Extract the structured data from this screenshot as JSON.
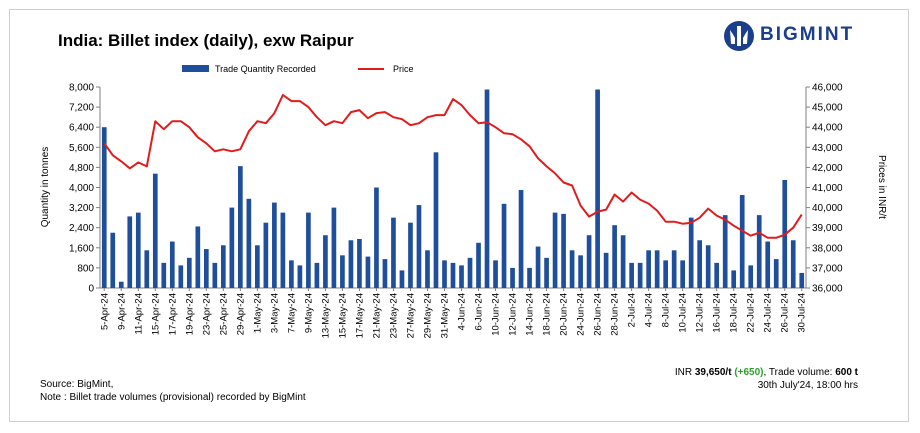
{
  "title": "India: Billet index (daily), exw Raipur",
  "logo": {
    "text": "BIGMINT"
  },
  "colors": {
    "bar": "#1f4e9c",
    "line": "#e01c1c",
    "logo": "#1b3f8b",
    "change": "#2e9e2e"
  },
  "footer": {
    "source": "Source: BigMint,",
    "note": "Note : Billet trade volumes (provisional) recorded by BigMint",
    "price_prefix": "INR ",
    "price_value": "39,650/t",
    "price_change": "(+650)",
    "volume_prefix": ", Trade volume: ",
    "volume_value": "600 t",
    "timestamp": "30th July'24, 18:00 hrs"
  },
  "chart_data": {
    "type": "bar+line",
    "y_left": {
      "label": "Quantity in tonnes",
      "min": 0,
      "max": 8000,
      "ticks": [
        "0",
        "800",
        "1,600",
        "2,400",
        "3,200",
        "4,000",
        "4,800",
        "5,600",
        "6,400",
        "7,200",
        "8,000"
      ]
    },
    "y_right": {
      "label": "Prices in INR/t",
      "min": 36000,
      "max": 46000,
      "ticks": [
        "36,000",
        "37,000",
        "38,000",
        "39,000",
        "40,000",
        "41,000",
        "42,000",
        "43,000",
        "44,000",
        "45,000",
        "46,000"
      ]
    },
    "x_tick_labels": [
      "5-Apr-24",
      "9-Apr-24",
      "11-Apr-24",
      "15-Apr-24",
      "17-Apr-24",
      "19-Apr-24",
      "23-Apr-24",
      "25-Apr-24",
      "29-Apr-24",
      "1-May-24",
      "3-May-24",
      "7-May-24",
      "9-May-24",
      "13-May-24",
      "15-May-24",
      "17-May-24",
      "21-May-24",
      "23-May-24",
      "27-May-24",
      "29-May-24",
      "31-May-24",
      "4-Jun-24",
      "6-Jun-24",
      "10-Jun-24",
      "12-Jun-24",
      "14-Jun-24",
      "18-Jun-24",
      "20-Jun-24",
      "24-Jun-24",
      "26-Jun-24",
      "28-Jun-24",
      "2-Jul-24",
      "4-Jul-24",
      "8-Jul-24",
      "10-Jul-24",
      "12-Jul-24",
      "16-Jul-24",
      "18-Jul-24",
      "22-Jul-24",
      "24-Jul-24",
      "26-Jul-24",
      "30-Jul-24"
    ],
    "series": [
      {
        "name": "Trade Quantity Recorded",
        "type": "bar",
        "values": [
          6400,
          2200,
          250,
          2850,
          3000,
          1500,
          4550,
          1000,
          1850,
          900,
          1200,
          2450,
          1550,
          1000,
          1700,
          3200,
          4850,
          3550,
          1700,
          2600,
          3400,
          3000,
          1100,
          900,
          3000,
          1000,
          2100,
          3200,
          1300,
          1900,
          1950,
          1250,
          4000,
          1150,
          2800,
          700,
          2600,
          3300,
          1500,
          5400,
          1100,
          1000,
          900,
          1200,
          1800,
          7900,
          1100,
          3350,
          800,
          3900,
          800,
          1650,
          1200,
          3000,
          2950,
          1500,
          1300,
          2100,
          7900,
          1400,
          2500,
          2100,
          1000,
          1000,
          1500,
          1500,
          1100,
          1500,
          1100,
          2800,
          1900,
          1700,
          1000,
          2900,
          700,
          3700,
          900,
          2900,
          1850,
          1150,
          4300,
          1900,
          600
        ]
      },
      {
        "name": "Price",
        "type": "line",
        "values": [
          43200,
          42600,
          42300,
          41950,
          42250,
          42050,
          44300,
          43900,
          44300,
          44300,
          44000,
          43500,
          43200,
          42800,
          42900,
          42800,
          42900,
          43800,
          44300,
          44200,
          44700,
          45600,
          45300,
          45300,
          45000,
          44500,
          44100,
          44300,
          44200,
          44750,
          44850,
          44450,
          44700,
          44750,
          44500,
          44400,
          44100,
          44200,
          44500,
          44600,
          44600,
          45400,
          45100,
          44600,
          44200,
          44250,
          44000,
          43700,
          43650,
          43400,
          43050,
          42450,
          42050,
          41700,
          41250,
          41100,
          40100,
          39550,
          39800,
          39900,
          40650,
          40300,
          40750,
          40400,
          40200,
          39850,
          39300,
          39300,
          39200,
          39250,
          39500,
          39950,
          39600,
          39400,
          39100,
          38850,
          38600,
          38750,
          38500,
          38500,
          38650,
          39000,
          39650
        ]
      }
    ],
    "legend_position": "top",
    "grid": false
  }
}
